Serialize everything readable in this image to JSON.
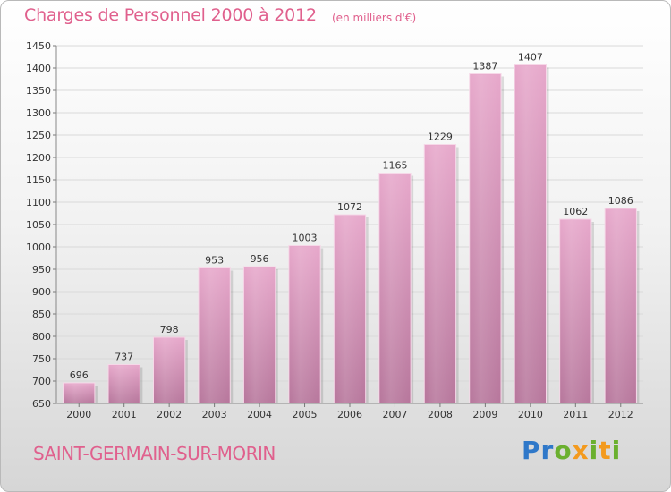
{
  "header": {
    "title": "Charges de Personnel 2000 à 2012",
    "subtitle": "(en milliers d'€)"
  },
  "footer": {
    "commune": "SAINT-GERMAIN-SUR-MORIN",
    "logo": "Proxiti"
  },
  "colors": {
    "accent": "#e0608d",
    "bar_light": "#e7a8cb",
    "bar_dark": "#b7779c"
  },
  "chart_data": {
    "type": "bar",
    "categories": [
      "2000",
      "2001",
      "2002",
      "2003",
      "2004",
      "2005",
      "2006",
      "2007",
      "2008",
      "2009",
      "2010",
      "2011",
      "2012"
    ],
    "values": [
      696,
      737,
      798,
      953,
      956,
      1003,
      1072,
      1165,
      1229,
      1387,
      1407,
      1062,
      1086
    ],
    "title": "Charges de Personnel 2000 à 2012",
    "subtitle": "(en milliers d'€)",
    "ylim": [
      650,
      1450
    ],
    "yticks": [
      650,
      700,
      750,
      800,
      850,
      900,
      950,
      1000,
      1050,
      1100,
      1150,
      1200,
      1250,
      1300,
      1350,
      1400,
      1450
    ],
    "grid": true
  }
}
